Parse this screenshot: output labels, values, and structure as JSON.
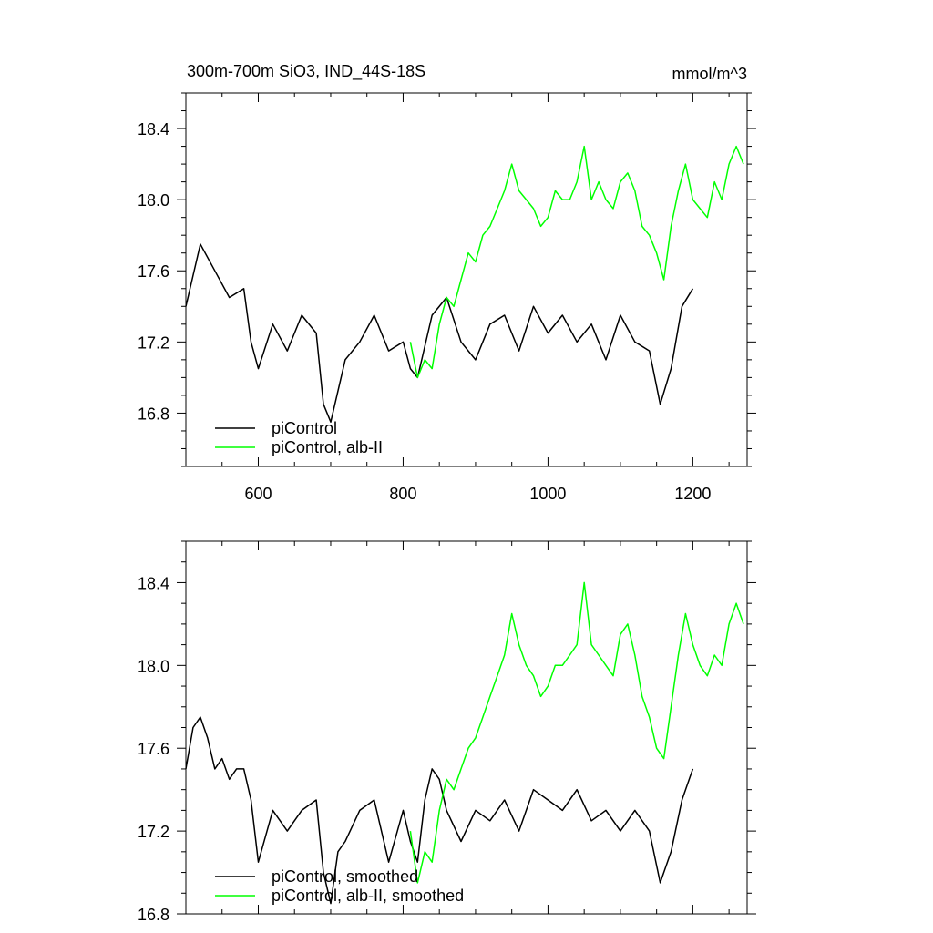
{
  "figure": {
    "title_left": "300m-700m SiO3, IND_44S-18S",
    "title_right": "mmol/m^3"
  },
  "colors": {
    "piControl": "#000000",
    "albII": "#00ff00"
  },
  "chart_data": [
    {
      "type": "line",
      "panel": "raw",
      "xlim": [
        500,
        1275
      ],
      "ylim": [
        16.5,
        18.6
      ],
      "x_ticks": [
        600,
        800,
        1000,
        1200
      ],
      "x_tick_labels": [
        "600",
        "800",
        "1000",
        "1200"
      ],
      "y_ticks": [
        16.8,
        17.2,
        17.6,
        18.0,
        18.4
      ],
      "y_tick_labels": [
        "16.8",
        "17.2",
        "17.6",
        "18.0",
        "18.4"
      ],
      "legend_position": "bottom-left",
      "series": [
        {
          "name": "piControl",
          "color": "#000000",
          "x": [
            500,
            520,
            540,
            560,
            580,
            590,
            600,
            620,
            640,
            660,
            680,
            690,
            700,
            720,
            740,
            760,
            780,
            800,
            810,
            820,
            840,
            860,
            880,
            900,
            920,
            940,
            960,
            980,
            1000,
            1020,
            1040,
            1060,
            1080,
            1100,
            1120,
            1140,
            1155,
            1170,
            1185,
            1200
          ],
          "y": [
            17.4,
            17.75,
            17.6,
            17.45,
            17.5,
            17.2,
            17.05,
            17.3,
            17.15,
            17.35,
            17.25,
            16.85,
            16.75,
            17.1,
            17.2,
            17.35,
            17.15,
            17.2,
            17.05,
            17.0,
            17.35,
            17.45,
            17.2,
            17.1,
            17.3,
            17.35,
            17.15,
            17.4,
            17.25,
            17.35,
            17.2,
            17.3,
            17.1,
            17.35,
            17.2,
            17.15,
            16.85,
            17.05,
            17.4,
            17.5
          ]
        },
        {
          "name": "piControl, alb-II",
          "color": "#00ff00",
          "x": [
            810,
            820,
            830,
            840,
            850,
            860,
            870,
            880,
            890,
            900,
            910,
            920,
            930,
            940,
            950,
            960,
            970,
            980,
            990,
            1000,
            1010,
            1020,
            1030,
            1040,
            1050,
            1060,
            1070,
            1080,
            1090,
            1100,
            1110,
            1120,
            1130,
            1140,
            1150,
            1160,
            1170,
            1180,
            1190,
            1200,
            1210,
            1220,
            1230,
            1240,
            1250,
            1260,
            1270
          ],
          "y": [
            17.2,
            17.0,
            17.1,
            17.05,
            17.3,
            17.45,
            17.4,
            17.55,
            17.7,
            17.65,
            17.8,
            17.85,
            17.95,
            18.05,
            18.2,
            18.05,
            18.0,
            17.95,
            17.85,
            17.9,
            18.05,
            18.0,
            18.0,
            18.1,
            18.3,
            18.0,
            18.1,
            18.0,
            17.95,
            18.1,
            18.15,
            18.05,
            17.85,
            17.8,
            17.7,
            17.55,
            17.85,
            18.05,
            18.2,
            18.0,
            17.95,
            17.9,
            18.1,
            18.0,
            18.2,
            18.3,
            18.2
          ]
        }
      ]
    },
    {
      "type": "line",
      "panel": "smoothed",
      "xlim": [
        500,
        1275
      ],
      "ylim": [
        16.8,
        18.6
      ],
      "x_ticks": [
        600,
        800,
        1000,
        1200
      ],
      "y_ticks": [
        16.8,
        17.2,
        17.6,
        18.0,
        18.4
      ],
      "y_tick_labels": [
        "16.8",
        "17.2",
        "17.6",
        "18.0",
        "18.4"
      ],
      "legend_position": "bottom-left",
      "series": [
        {
          "name": "piControl, smoothed",
          "color": "#000000",
          "x": [
            500,
            510,
            520,
            530,
            540,
            550,
            560,
            570,
            580,
            590,
            600,
            620,
            640,
            660,
            680,
            690,
            700,
            710,
            720,
            740,
            760,
            780,
            800,
            810,
            820,
            830,
            840,
            850,
            860,
            880,
            900,
            920,
            940,
            960,
            980,
            1000,
            1020,
            1040,
            1060,
            1080,
            1100,
            1120,
            1140,
            1155,
            1170,
            1185,
            1200
          ],
          "y": [
            17.5,
            17.7,
            17.75,
            17.65,
            17.5,
            17.55,
            17.45,
            17.5,
            17.5,
            17.35,
            17.05,
            17.3,
            17.2,
            17.3,
            17.35,
            17.0,
            16.85,
            17.1,
            17.15,
            17.3,
            17.35,
            17.05,
            17.3,
            17.15,
            17.05,
            17.35,
            17.5,
            17.45,
            17.3,
            17.15,
            17.3,
            17.25,
            17.35,
            17.2,
            17.4,
            17.35,
            17.3,
            17.4,
            17.25,
            17.3,
            17.2,
            17.3,
            17.2,
            16.95,
            17.1,
            17.35,
            17.5
          ]
        },
        {
          "name": "piControl, alb-II, smoothed",
          "color": "#00ff00",
          "x": [
            810,
            820,
            830,
            840,
            850,
            860,
            870,
            880,
            890,
            900,
            910,
            920,
            930,
            940,
            950,
            960,
            970,
            980,
            990,
            1000,
            1010,
            1020,
            1030,
            1040,
            1050,
            1060,
            1070,
            1080,
            1090,
            1100,
            1110,
            1120,
            1130,
            1140,
            1150,
            1160,
            1170,
            1180,
            1190,
            1200,
            1210,
            1220,
            1230,
            1240,
            1250,
            1260,
            1270
          ],
          "y": [
            17.2,
            16.95,
            17.1,
            17.05,
            17.3,
            17.45,
            17.4,
            17.5,
            17.6,
            17.65,
            17.75,
            17.85,
            17.95,
            18.05,
            18.25,
            18.1,
            18.0,
            17.95,
            17.85,
            17.9,
            18.0,
            18.0,
            18.05,
            18.1,
            18.4,
            18.1,
            18.05,
            18.0,
            17.95,
            18.15,
            18.2,
            18.05,
            17.85,
            17.75,
            17.6,
            17.55,
            17.8,
            18.05,
            18.25,
            18.1,
            18.0,
            17.95,
            18.05,
            18.0,
            18.2,
            18.3,
            18.2
          ]
        }
      ]
    }
  ]
}
